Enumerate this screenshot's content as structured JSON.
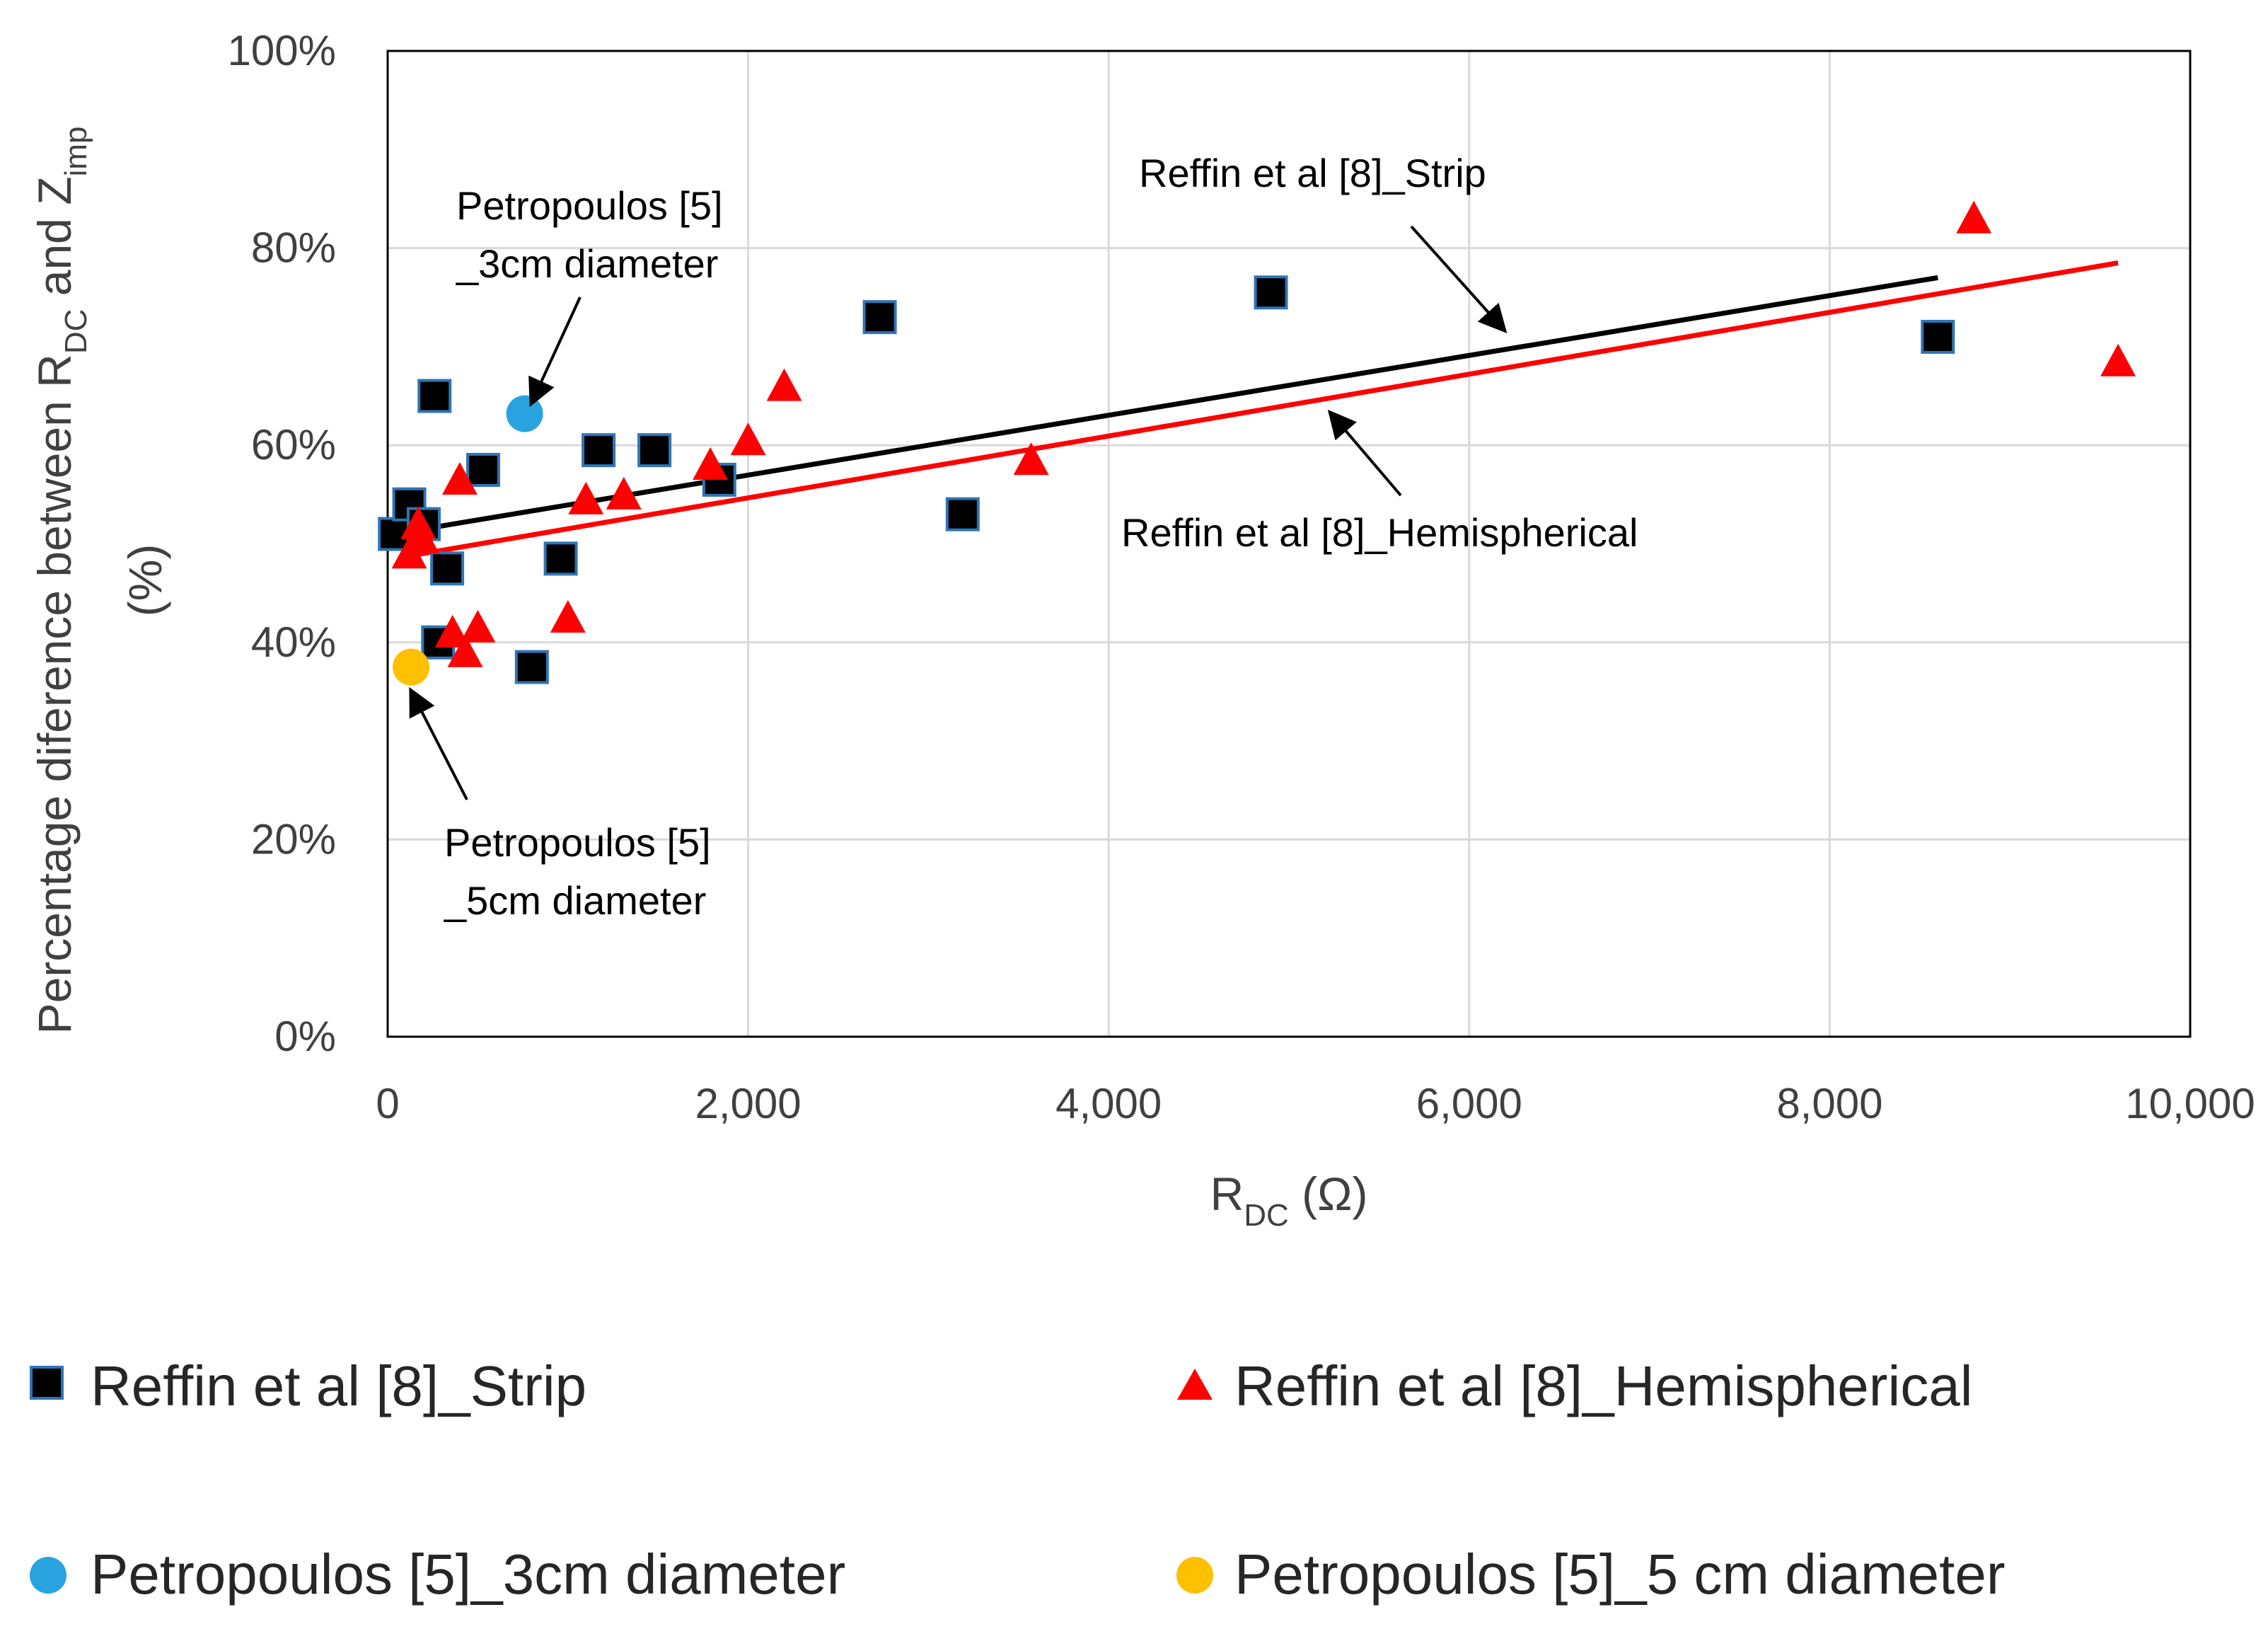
{
  "chart_data": {
    "type": "scatter",
    "title": "",
    "xlabel": {
      "main": "R",
      "sub": "DC",
      "rest": " (Ω)"
    },
    "ylabel": {
      "line1": {
        "part1": "Percentage diference between R",
        "sub1": "DC",
        "part2": " and Z",
        "sub2": "imp"
      },
      "line2": "(%)"
    },
    "xlim": [
      0,
      10000
    ],
    "ylim": [
      0,
      1
    ],
    "xticks": [
      {
        "value": 0,
        "label": "0"
      },
      {
        "value": 2000,
        "label": "2,000"
      },
      {
        "value": 4000,
        "label": "4,000"
      },
      {
        "value": 6000,
        "label": "6,000"
      },
      {
        "value": 8000,
        "label": "8,000"
      },
      {
        "value": 10000,
        "label": "10,000"
      }
    ],
    "yticks": [
      {
        "value": 0,
        "label": "0%"
      },
      {
        "value": 0.2,
        "label": "20%"
      },
      {
        "value": 0.4,
        "label": "40%"
      },
      {
        "value": 0.6,
        "label": "60%"
      },
      {
        "value": 0.8,
        "label": "80%"
      },
      {
        "value": 1.0,
        "label": "100%"
      }
    ],
    "grid": true,
    "legend_placement": "bottom",
    "series": [
      {
        "name": "Reffin et al [8]_Strip",
        "marker": "square",
        "color": "#000000",
        "edge": "#2e75b6",
        "points": [
          [
            40,
            0.51
          ],
          [
            120,
            0.54
          ],
          [
            200,
            0.52
          ],
          [
            260,
            0.65
          ],
          [
            280,
            0.4
          ],
          [
            330,
            0.475
          ],
          [
            530,
            0.575
          ],
          [
            800,
            0.375
          ],
          [
            960,
            0.485
          ],
          [
            1170,
            0.595
          ],
          [
            1480,
            0.595
          ],
          [
            1840,
            0.565
          ],
          [
            2730,
            0.73
          ],
          [
            3190,
            0.53
          ],
          [
            4900,
            0.755
          ],
          [
            8600,
            0.71
          ]
        ],
        "trend": [
          [
            130,
            0.513
          ],
          [
            8600,
            0.77
          ]
        ]
      },
      {
        "name": "Reffin et al [8]_Hemispherical",
        "marker": "triangle",
        "color": "#ff0000",
        "points": [
          [
            120,
            0.49
          ],
          [
            170,
            0.52
          ],
          [
            190,
            0.505
          ],
          [
            360,
            0.41
          ],
          [
            400,
            0.565
          ],
          [
            430,
            0.39
          ],
          [
            500,
            0.415
          ],
          [
            1000,
            0.425
          ],
          [
            1100,
            0.545
          ],
          [
            1310,
            0.55
          ],
          [
            1790,
            0.58
          ],
          [
            2000,
            0.605
          ],
          [
            2200,
            0.66
          ],
          [
            3570,
            0.585
          ],
          [
            8800,
            0.83
          ],
          [
            9600,
            0.685
          ]
        ],
        "trend": [
          [
            130,
            0.488
          ],
          [
            9600,
            0.785
          ]
        ]
      },
      {
        "name": "Petropoulos [5]_3cm diameter",
        "marker": "circle",
        "color": "#29a3e0",
        "points": [
          [
            760,
            0.632
          ]
        ]
      },
      {
        "name": "Petropoulos [5]_5 cm diameter",
        "marker": "circle",
        "color": "#ffc000",
        "points": [
          [
            130,
            0.375
          ]
        ]
      }
    ],
    "annotations": [
      {
        "lines": [
          "Reffin et al [8]_Strip"
        ],
        "target": [
          6200,
          0.695
        ]
      },
      {
        "lines": [
          "Reffin et al [8]_Hemispherical"
        ],
        "target": [
          5200,
          0.638
        ]
      },
      {
        "lines": [
          "Petropoulos [5]",
          "_3cm diameter"
        ],
        "target": [
          780,
          0.645
        ]
      },
      {
        "lines": [
          "Petropoulos [5]",
          "_5cm diameter"
        ],
        "target": [
          160,
          0.355
        ]
      }
    ]
  }
}
